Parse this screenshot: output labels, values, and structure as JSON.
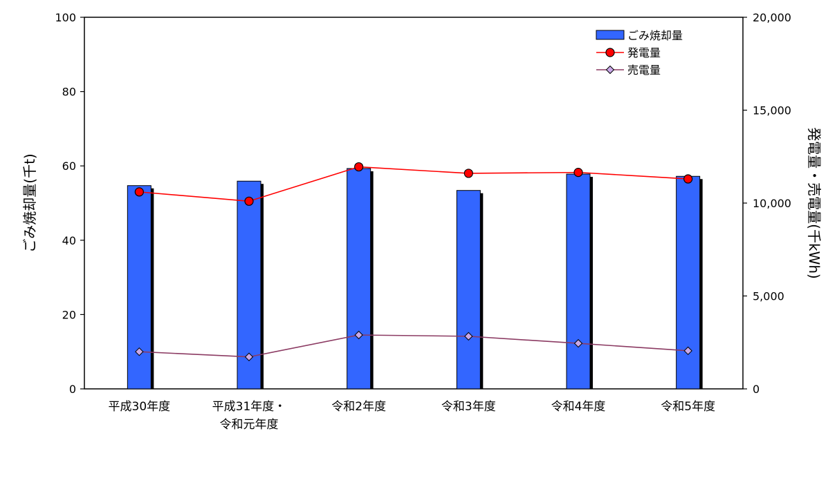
{
  "chart_data": {
    "type": "bar",
    "categories": [
      [
        "平成30年度"
      ],
      [
        "平成31年度・",
        "令和元年度"
      ],
      [
        "令和2年度"
      ],
      [
        "令和3年度"
      ],
      [
        "令和4年度"
      ],
      [
        "令和5年度"
      ]
    ],
    "ylabel_left": "ごみ焼却量(千t)",
    "ylabel_right": "発電量・売電量(千kWh)",
    "ylim_left": [
      0,
      100
    ],
    "ylim_right": [
      0,
      20000
    ],
    "yticks_left": [
      0,
      20,
      40,
      60,
      80,
      100
    ],
    "yticks_right": [
      0,
      5000,
      10000,
      15000,
      20000
    ],
    "ytick_labels_right": [
      "0",
      "5,000",
      "10,000",
      "15,000",
      "20,000"
    ],
    "grid": false,
    "legend_position": "top-right",
    "series": [
      {
        "name": "ごみ焼却量",
        "kind": "bar",
        "axis": "left",
        "color": "#3366ff",
        "values": [
          54.7,
          55.9,
          59.3,
          53.4,
          57.8,
          57.2
        ]
      },
      {
        "name": "発電量",
        "kind": "line",
        "axis": "right",
        "color": "#ff0000",
        "marker": "circle",
        "values": [
          10600,
          10100,
          11950,
          11600,
          11650,
          11300
        ]
      },
      {
        "name": "売電量",
        "kind": "line",
        "axis": "right",
        "color": "#8b3a62",
        "marker": "diamond",
        "marker_fill": "#c8a8e8",
        "values": [
          2000,
          1720,
          2900,
          2830,
          2450,
          2050
        ]
      }
    ]
  }
}
